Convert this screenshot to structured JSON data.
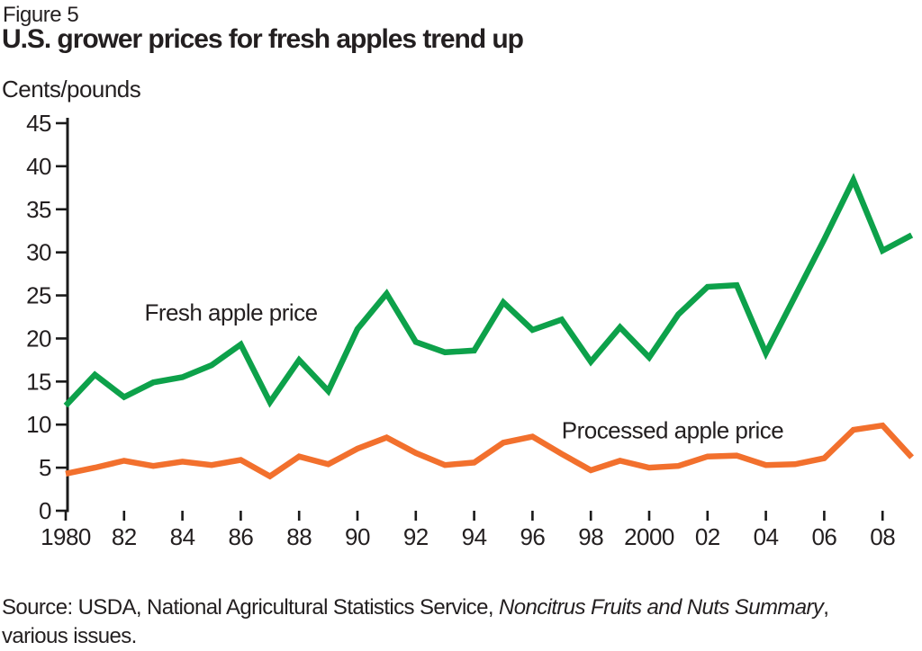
{
  "figure_label": "Figure 5",
  "title": "U.S. grower prices for fresh apples trend up",
  "y_axis_unit_label": "Cents/pounds",
  "source": {
    "prefix": "Source: USDA, National Agricultural Statistics Service, ",
    "italic": "Noncitrus Fruits and Nuts Summary",
    "suffix": ", various issues."
  },
  "chart_data": {
    "type": "line",
    "title": "U.S. grower prices for fresh apples trend up",
    "xlabel": "",
    "ylabel": "Cents/pounds",
    "ylim": [
      0,
      45
    ],
    "y_ticks": [
      0,
      5,
      10,
      15,
      20,
      25,
      30,
      35,
      40,
      45
    ],
    "x_tick_years": [
      1980,
      1982,
      1984,
      1986,
      1988,
      1990,
      1992,
      1994,
      1996,
      1998,
      2000,
      2002,
      2004,
      2006,
      2008
    ],
    "x_tick_labels": [
      "1980",
      "82",
      "84",
      "86",
      "88",
      "90",
      "92",
      "94",
      "96",
      "98",
      "2000",
      "02",
      "04",
      "06",
      "08"
    ],
    "grid": false,
    "legend_position": "inline-annotations",
    "x": [
      1980,
      1981,
      1982,
      1983,
      1984,
      1985,
      1986,
      1987,
      1988,
      1989,
      1990,
      1991,
      1992,
      1993,
      1994,
      1995,
      1996,
      1997,
      1998,
      1999,
      2000,
      2001,
      2002,
      2003,
      2004,
      2005,
      2006,
      2007,
      2008,
      2009
    ],
    "series": [
      {
        "name": "Fresh apple price",
        "color": "#0da14a",
        "values": [
          12.2,
          15.8,
          13.2,
          14.9,
          15.5,
          16.9,
          19.3,
          12.6,
          17.5,
          13.9,
          21.1,
          25.2,
          19.6,
          18.4,
          18.6,
          24.2,
          21.0,
          22.2,
          17.3,
          21.3,
          17.8,
          22.8,
          26.0,
          26.2,
          18.3,
          24.9,
          31.5,
          38.4,
          30.2,
          32.0
        ]
      },
      {
        "name": "Processed apple price",
        "color": "#f2702d",
        "values": [
          4.3,
          5.0,
          5.8,
          5.2,
          5.7,
          5.3,
          5.9,
          4.0,
          6.3,
          5.4,
          7.2,
          8.5,
          6.7,
          5.3,
          5.6,
          7.9,
          8.6,
          6.6,
          4.7,
          5.8,
          5.0,
          5.2,
          6.3,
          6.4,
          5.3,
          5.4,
          6.1,
          9.4,
          9.9,
          6.2
        ]
      }
    ],
    "annotations": [
      {
        "text": "Fresh apple price",
        "year": 1982.7,
        "value": 22.1
      },
      {
        "text": "Processed apple price",
        "year": 1997.0,
        "value": 8.4
      }
    ]
  }
}
